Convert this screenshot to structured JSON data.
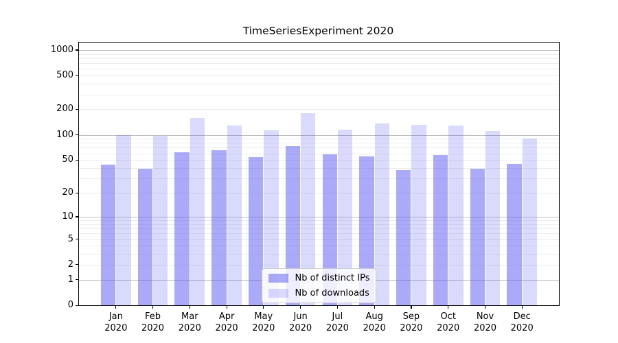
{
  "chart_data": {
    "type": "bar",
    "title": "TimeSeriesExperiment 2020",
    "categories": [
      "Jan",
      "Feb",
      "Mar",
      "Apr",
      "May",
      "Jun",
      "Jul",
      "Aug",
      "Sep",
      "Oct",
      "Nov",
      "Dec"
    ],
    "x_year_label": "2020",
    "series": [
      {
        "name": "Nb of distinct IPs",
        "color": "rgba(85,85,241,0.50)",
        "values": [
          44,
          39,
          62,
          65,
          54,
          73,
          59,
          55,
          38,
          57,
          39,
          45
        ]
      },
      {
        "name": "Nb of downloads",
        "color": "rgba(85,85,241,0.22)",
        "values": [
          100,
          97,
          158,
          130,
          112,
          182,
          116,
          136,
          131,
          129,
          111,
          91
        ]
      }
    ],
    "y_ticks": [
      0,
      1,
      2,
      5,
      10,
      20,
      50,
      100,
      200,
      500,
      1000
    ],
    "y_minor_gridlines": [
      2,
      3,
      4,
      5,
      6,
      7,
      8,
      9,
      20,
      30,
      40,
      50,
      60,
      70,
      80,
      90,
      200,
      300,
      400,
      500,
      600,
      700,
      800,
      900
    ],
    "y_major_gridlines": [
      1,
      10,
      100,
      1000
    ],
    "yscale": "log10(1+y)",
    "ylim": [
      0,
      1240
    ],
    "grid": true,
    "legend_position": "lower center"
  },
  "colors": {
    "bar_distinct_ips": "rgba(85,85,241,0.50)",
    "bar_downloads": "rgba(85,85,241,0.22)",
    "grid_minor": "#ececec",
    "grid_major": "#bdbdbd",
    "axis": "#000000",
    "legend_border": "#cccccc",
    "legend_background": "rgba(255,255,255,0.8)"
  }
}
